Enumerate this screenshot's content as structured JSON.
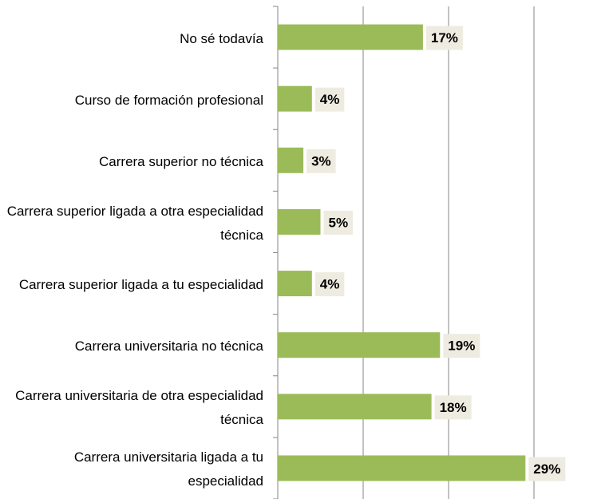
{
  "chart_data": {
    "type": "bar",
    "orientation": "horizontal",
    "categories": [
      "No sé todavía",
      "Curso de formación profesional",
      "Carrera superior no técnica",
      "Carrera superior ligada a otra especialidad técnica",
      "Carrera superior ligada a tu especialidad",
      "Carrera universitaria no técnica",
      "Carrera universitaria de otra especialidad técnica",
      "Carrera universitaria ligada a tu especialidad"
    ],
    "values": [
      17,
      4,
      3,
      5,
      4,
      19,
      18,
      29
    ],
    "value_labels": [
      "17%",
      "4%",
      "3%",
      "5%",
      "4%",
      "19%",
      "18%",
      "29%"
    ],
    "color": "#9bbb59",
    "xlim": [
      0,
      30
    ],
    "xticks": [
      0,
      10,
      20,
      30
    ],
    "grid": true
  }
}
